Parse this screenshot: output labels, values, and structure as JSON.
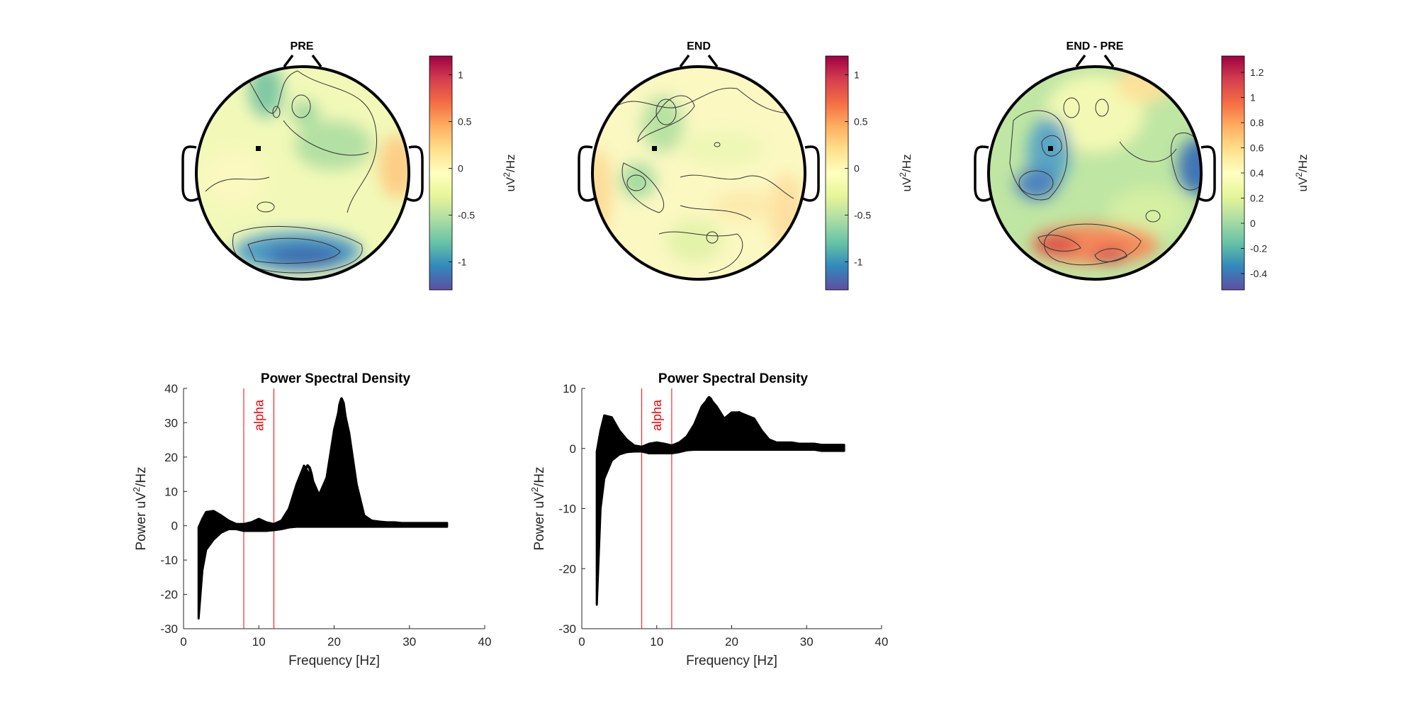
{
  "colors": {
    "colormap": [
      "#5e4fa2",
      "#3288bd",
      "#66c2a5",
      "#abdda4",
      "#e6f598",
      "#ffffbf",
      "#fee08b",
      "#fdae61",
      "#f46d43",
      "#d53e4f",
      "#9e0142"
    ],
    "outline": "#000000",
    "alpha_marker": "#ff0000",
    "psd_lines": "#000000"
  },
  "topoplots": [
    {
      "title": "PRE",
      "colorbar_label": "uV",
      "colorbar_sup": "2",
      "colorbar_unit": "/Hz",
      "clim": [
        -1.3,
        1.2
      ],
      "ticks": [
        1,
        0.5,
        0,
        -0.5,
        -1
      ],
      "tick_labels": [
        "1",
        "0.5",
        "0",
        "-0.5",
        "-1"
      ]
    },
    {
      "title": "END",
      "colorbar_label": "uV",
      "colorbar_sup": "2",
      "colorbar_unit": "/Hz",
      "clim": [
        -1.3,
        1.2
      ],
      "ticks": [
        1,
        0.5,
        0,
        -0.5,
        -1
      ],
      "tick_labels": [
        "1",
        "0.5",
        "0",
        "-0.5",
        "-1"
      ]
    },
    {
      "title": "END - PRE",
      "colorbar_label": "uV",
      "colorbar_sup": "2",
      "colorbar_unit": "/Hz",
      "clim": [
        -0.53,
        1.33
      ],
      "ticks": [
        1.2,
        1,
        0.8,
        0.6,
        0.4,
        0.2,
        0,
        -0.2,
        -0.4
      ],
      "tick_labels": [
        "1.2",
        "1",
        "0.8",
        "0.6",
        "0.4",
        "0.2",
        "0",
        "-0.2",
        "-0.4"
      ]
    }
  ],
  "chart_data": [
    {
      "type": "line",
      "title": "Power Spectral Density",
      "xlabel": "Frequency [Hz]",
      "ylabel": "Power uV",
      "ylabel_sup": "2",
      "ylabel_unit": "/Hz",
      "xlim": [
        0,
        40
      ],
      "ylim": [
        -30,
        40
      ],
      "xticks": [
        0,
        10,
        20,
        30,
        40
      ],
      "yticks": [
        -30,
        -20,
        -10,
        0,
        10,
        20,
        30,
        40
      ],
      "band_label": "alpha",
      "band": [
        8,
        12
      ],
      "x": [
        2,
        2.5,
        3,
        4,
        5,
        6,
        7,
        8,
        9,
        10,
        11,
        12,
        13,
        14,
        15,
        16,
        17,
        18,
        19,
        20,
        21,
        22,
        23,
        24,
        25,
        26,
        27,
        28,
        29,
        30,
        31,
        32,
        33,
        34,
        35
      ],
      "envelope_upper": [
        -0.5,
        2,
        4,
        4.3,
        3,
        1.5,
        0.5,
        0.5,
        1,
        2,
        1,
        0.5,
        1.5,
        5,
        12,
        17.5,
        14,
        9,
        14,
        28,
        37,
        27,
        12,
        3,
        1.5,
        1.2,
        1,
        1,
        0.8,
        0.8,
        0.8,
        0.8,
        0.8,
        0.8,
        0.8
      ],
      "envelope_lower": [
        -27,
        -13,
        -7,
        -4,
        -2,
        -1,
        -1,
        -1.5,
        -1.5,
        -1.5,
        -1.5,
        -1.3,
        -1,
        -0.5,
        -0.3,
        -0.3,
        -0.3,
        -0.3,
        -0.3,
        -0.3,
        -0.3,
        -0.3,
        -0.3,
        -0.3,
        -0.3,
        -0.3,
        -0.3,
        -0.3,
        -0.3,
        -0.3,
        -0.3,
        -0.3,
        -0.3,
        -0.3,
        -0.3
      ],
      "peaks": [
        {
          "f": 16.5,
          "heights": [
            17.5,
            15,
            13,
            11,
            9,
            7,
            5,
            3
          ]
        },
        {
          "f": 21,
          "heights": [
            37,
            33,
            29,
            25,
            21,
            17,
            13,
            9,
            6,
            3
          ]
        }
      ]
    },
    {
      "type": "line",
      "title": "Power Spectral Density",
      "xlabel": "Frequency [Hz]",
      "ylabel": "Power uV",
      "ylabel_sup": "2",
      "ylabel_unit": "/Hz",
      "xlim": [
        0,
        40
      ],
      "ylim": [
        -30,
        10
      ],
      "xticks": [
        0,
        10,
        20,
        30,
        40
      ],
      "yticks": [
        -30,
        -20,
        -10,
        0,
        10
      ],
      "band_label": "alpha",
      "band": [
        8,
        12
      ],
      "x": [
        2,
        2.5,
        3,
        4,
        5,
        6,
        7,
        8,
        9,
        10,
        11,
        12,
        13,
        14,
        15,
        16,
        17,
        18,
        19,
        20,
        21,
        22,
        23,
        24,
        25,
        26,
        27,
        28,
        29,
        30,
        31,
        32,
        33,
        34,
        35
      ],
      "envelope_upper": [
        -0.5,
        3,
        5.5,
        5.2,
        3,
        1.5,
        0.5,
        0.3,
        0.8,
        1,
        0.8,
        0.5,
        1,
        2,
        4,
        7,
        8.5,
        7,
        5,
        6,
        6,
        5.5,
        5,
        3,
        1.5,
        1,
        1,
        1,
        0.8,
        0.8,
        0.8,
        0.6,
        0.6,
        0.6,
        0.6
      ],
      "envelope_lower": [
        -26,
        -10,
        -5,
        -2,
        -1,
        -0.6,
        -0.5,
        -0.5,
        -0.8,
        -0.8,
        -0.8,
        -0.8,
        -0.6,
        -0.3,
        -0.2,
        -0.2,
        -0.2,
        -0.2,
        -0.2,
        -0.2,
        -0.2,
        -0.2,
        -0.2,
        -0.2,
        -0.2,
        -0.2,
        -0.2,
        -0.2,
        -0.2,
        -0.2,
        -0.2,
        -0.4,
        -0.4,
        -0.4,
        -0.4
      ],
      "peaks": [
        {
          "f": 17,
          "heights": [
            8.5,
            7,
            6,
            5,
            4,
            3
          ]
        },
        {
          "f": 21,
          "heights": [
            6,
            5,
            4,
            3,
            2
          ]
        }
      ]
    }
  ]
}
